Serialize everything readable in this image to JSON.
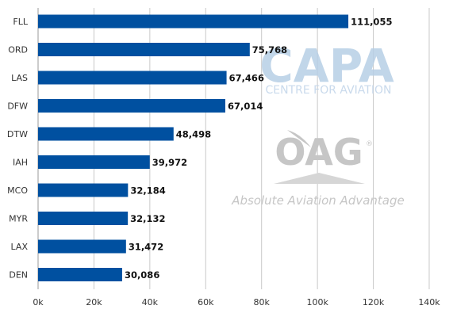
{
  "chart_data": {
    "type": "bar",
    "orientation": "horizontal",
    "categories": [
      "FLL",
      "ORD",
      "LAS",
      "DFW",
      "DTW",
      "IAH",
      "MCO",
      "MYR",
      "LAX",
      "DEN"
    ],
    "values": [
      111055,
      75768,
      67466,
      67014,
      48498,
      39972,
      32184,
      32132,
      31472,
      30086
    ],
    "value_labels": [
      "111,055",
      "75,768",
      "67,466",
      "67,014",
      "48,498",
      "39,972",
      "32,184",
      "32,132",
      "31,472",
      "30,086"
    ],
    "title": "",
    "xlabel": "",
    "ylabel": "",
    "xlim": [
      0,
      140000
    ],
    "x_ticks": [
      0,
      20000,
      40000,
      60000,
      80000,
      100000,
      120000,
      140000
    ],
    "x_tick_labels": [
      "0k",
      "20k",
      "40k",
      "60k",
      "80k",
      "100k",
      "120k",
      "140k"
    ],
    "grid": "vertical",
    "bar_color": "#0050a0",
    "grid_color": "#c8c8c8"
  },
  "watermark": {
    "capa_logo": "CAPA",
    "capa_tagline": "CENTRE FOR AVIATION",
    "oag_logo": "OAG",
    "oag_tagline": "Absolute Aviation Advantage",
    "capa_color": "#b7cfe6",
    "oag_color": "#c6c6c6"
  }
}
